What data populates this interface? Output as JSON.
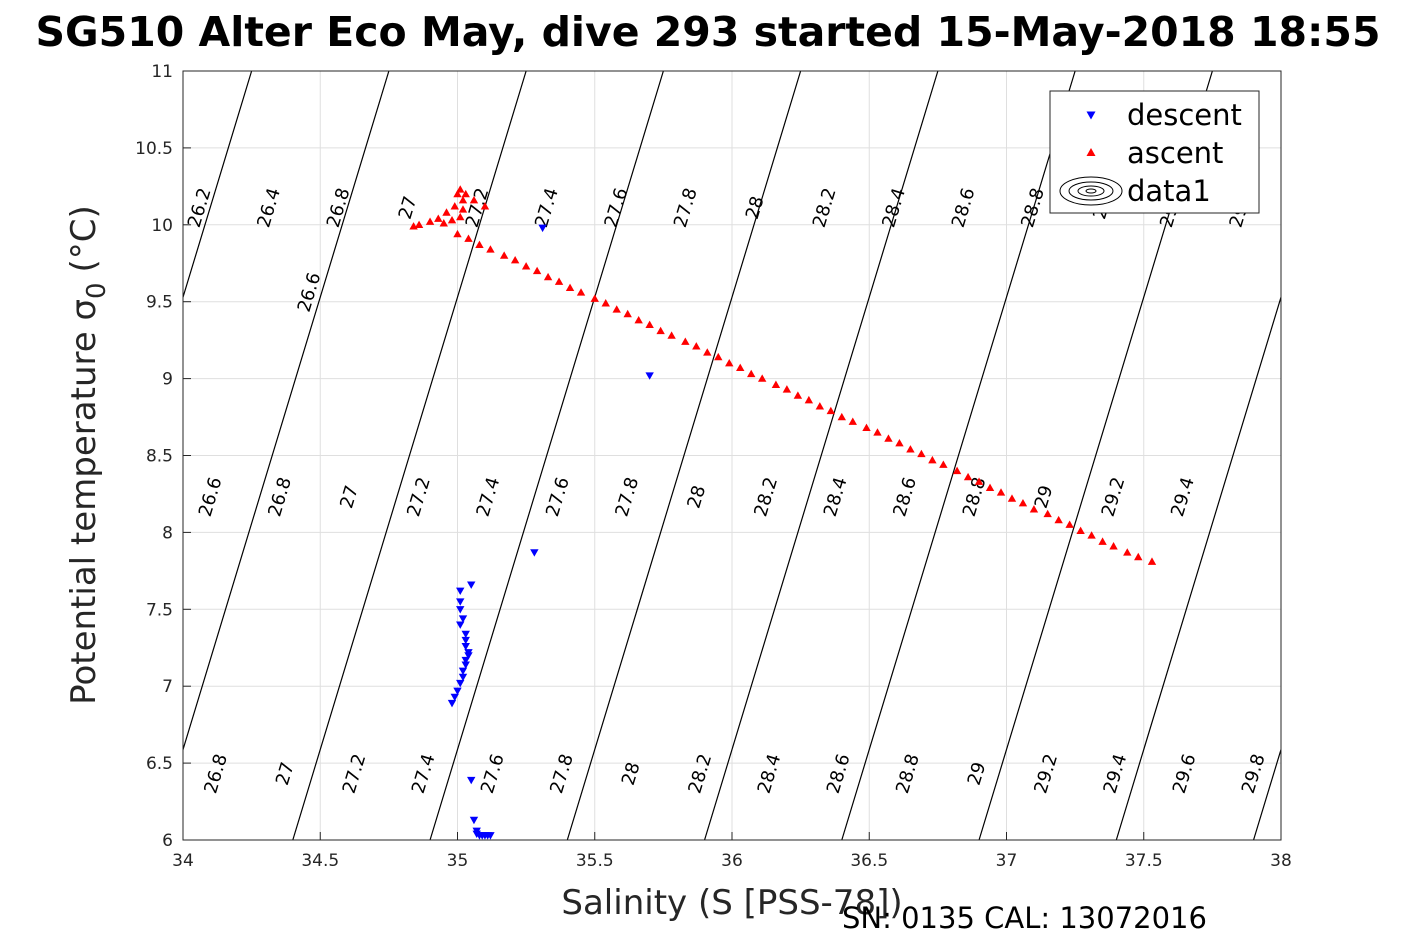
{
  "chart_data": {
    "type": "scatter",
    "title": "SG510 Alter Eco May, dive 293 started 15-May-2018 18:55",
    "xlabel": "Salinity (S [PSS-78])",
    "ylabel": "Potential temperature σ",
    "ylabel_sub": "0",
    "ylabel_unit": "(°C)",
    "xlim": [
      34,
      38
    ],
    "ylim": [
      6,
      11
    ],
    "x_ticks": [
      "34",
      "34.5",
      "35",
      "35.5",
      "36",
      "36.5",
      "37",
      "37.5",
      "38"
    ],
    "y_ticks": [
      "6",
      "6.5",
      "7",
      "7.5",
      "8",
      "8.5",
      "9",
      "9.5",
      "10",
      "10.5",
      "11"
    ],
    "grid": true,
    "legend": {
      "placement": "top-right",
      "entries": [
        "descent",
        "ascent",
        "data1"
      ]
    },
    "footer": "SN: 0135  CAL: 13072016",
    "series": [
      {
        "name": "descent",
        "color": "#0000ff",
        "marker": "triangle-down",
        "points": [
          [
            35.31,
            9.98
          ],
          [
            35.7,
            9.02
          ],
          [
            35.28,
            7.87
          ],
          [
            35.05,
            7.66
          ],
          [
            35.01,
            7.62
          ],
          [
            35.01,
            7.55
          ],
          [
            35.01,
            7.5
          ],
          [
            35.02,
            7.44
          ],
          [
            35.01,
            7.4
          ],
          [
            35.03,
            7.34
          ],
          [
            35.03,
            7.3
          ],
          [
            35.03,
            7.26
          ],
          [
            35.04,
            7.22
          ],
          [
            35.04,
            7.2
          ],
          [
            35.03,
            7.17
          ],
          [
            35.03,
            7.14
          ],
          [
            35.02,
            7.1
          ],
          [
            35.02,
            7.06
          ],
          [
            35.01,
            7.02
          ],
          [
            35.0,
            6.97
          ],
          [
            34.99,
            6.93
          ],
          [
            34.98,
            6.89
          ],
          [
            35.05,
            6.39
          ],
          [
            35.06,
            6.13
          ],
          [
            35.07,
            6.06
          ],
          [
            35.07,
            6.04
          ],
          [
            35.08,
            6.03
          ],
          [
            35.09,
            6.03
          ],
          [
            35.1,
            6.03
          ],
          [
            35.11,
            6.03
          ],
          [
            35.12,
            6.03
          ]
        ]
      },
      {
        "name": "ascent",
        "color": "#ff0000",
        "marker": "triangle-up",
        "points": [
          [
            37.53,
            7.81
          ],
          [
            37.48,
            7.84
          ],
          [
            37.44,
            7.87
          ],
          [
            37.39,
            7.91
          ],
          [
            37.35,
            7.94
          ],
          [
            37.31,
            7.98
          ],
          [
            37.27,
            8.01
          ],
          [
            37.23,
            8.05
          ],
          [
            37.19,
            8.08
          ],
          [
            37.15,
            8.12
          ],
          [
            37.1,
            8.15
          ],
          [
            37.06,
            8.19
          ],
          [
            37.02,
            8.22
          ],
          [
            36.98,
            8.26
          ],
          [
            36.94,
            8.29
          ],
          [
            36.9,
            8.33
          ],
          [
            36.86,
            8.36
          ],
          [
            36.82,
            8.4
          ],
          [
            36.77,
            8.44
          ],
          [
            36.73,
            8.47
          ],
          [
            36.69,
            8.51
          ],
          [
            36.65,
            8.54
          ],
          [
            36.61,
            8.58
          ],
          [
            36.57,
            8.61
          ],
          [
            36.53,
            8.65
          ],
          [
            36.49,
            8.68
          ],
          [
            36.44,
            8.72
          ],
          [
            36.4,
            8.75
          ],
          [
            36.36,
            8.79
          ],
          [
            36.32,
            8.82
          ],
          [
            36.28,
            8.86
          ],
          [
            36.24,
            8.89
          ],
          [
            36.2,
            8.93
          ],
          [
            36.16,
            8.96
          ],
          [
            36.11,
            9.0
          ],
          [
            36.07,
            9.03
          ],
          [
            36.03,
            9.07
          ],
          [
            35.99,
            9.1
          ],
          [
            35.95,
            9.14
          ],
          [
            35.91,
            9.17
          ],
          [
            35.87,
            9.21
          ],
          [
            35.83,
            9.24
          ],
          [
            35.78,
            9.28
          ],
          [
            35.74,
            9.31
          ],
          [
            35.7,
            9.35
          ],
          [
            35.66,
            9.38
          ],
          [
            35.62,
            9.42
          ],
          [
            35.58,
            9.45
          ],
          [
            35.54,
            9.49
          ],
          [
            35.5,
            9.52
          ],
          [
            35.45,
            9.56
          ],
          [
            35.41,
            9.59
          ],
          [
            35.37,
            9.63
          ],
          [
            35.33,
            9.66
          ],
          [
            35.29,
            9.7
          ],
          [
            35.25,
            9.73
          ],
          [
            35.21,
            9.77
          ],
          [
            35.17,
            9.8
          ],
          [
            35.12,
            9.84
          ],
          [
            35.08,
            9.87
          ],
          [
            35.04,
            9.91
          ],
          [
            35.0,
            9.94
          ],
          [
            35.1,
            10.12
          ],
          [
            35.06,
            10.16
          ],
          [
            35.03,
            10.2
          ],
          [
            35.01,
            10.23
          ],
          [
            35.0,
            10.2
          ],
          [
            35.02,
            10.16
          ],
          [
            34.99,
            10.12
          ],
          [
            34.96,
            10.08
          ],
          [
            34.93,
            10.04
          ],
          [
            34.9,
            10.02
          ],
          [
            34.86,
            10.0
          ],
          [
            34.84,
            9.99
          ],
          [
            34.95,
            10.01
          ],
          [
            34.98,
            10.03
          ],
          [
            35.01,
            10.05
          ],
          [
            35.02,
            10.1
          ]
        ]
      }
    ],
    "contours": {
      "color": "#000000",
      "levels": [
        26.2,
        26.4,
        26.6,
        26.8,
        27,
        27.2,
        27.4,
        27.6,
        27.8,
        28,
        28.2,
        28.4,
        28.6,
        28.8,
        29,
        29.2,
        29.4,
        29.6,
        29.8
      ],
      "level_labels": [
        "26.2",
        "26.4",
        "26.6",
        "26.8",
        "27",
        "27.2",
        "27.4",
        "27.6",
        "27.8",
        "28",
        "28.2",
        "28.4",
        "28.6",
        "28.8",
        "29",
        "29.2",
        "29.4",
        "29.6",
        "29.8"
      ],
      "label_rows": [
        [
          "26.2",
          "26.4",
          "26.8",
          "27",
          "27.2",
          "27.4",
          "27.6",
          "27.8",
          "28",
          "28.2",
          "28.4",
          "28.6",
          "28.8",
          "29",
          "29.2",
          "29.4"
        ],
        [
          "26.6"
        ],
        [
          "26.6",
          "26.8",
          "27",
          "27.2",
          "27.4",
          "27.6",
          "27.8",
          "28",
          "28.2",
          "28.4",
          "28.6",
          "28.8",
          "29",
          "29.2",
          "29.4"
        ],
        [
          "26.8",
          "27",
          "27.2",
          "27.4",
          "27.6",
          "27.8",
          "28",
          "28.2",
          "28.4",
          "28.6",
          "28.8",
          "29",
          "29.2",
          "29.4",
          "29.6",
          "29.8"
        ]
      ]
    }
  }
}
